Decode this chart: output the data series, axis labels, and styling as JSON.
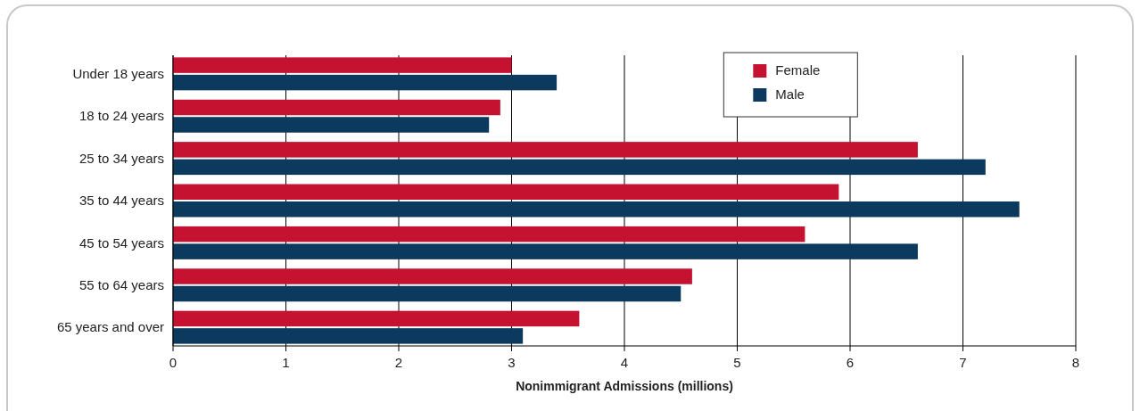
{
  "chart_data": {
    "type": "bar",
    "orientation": "horizontal",
    "xlabel": "Nonimmigrant Admissions (millions)",
    "categories": [
      "Under 18 years",
      "18 to 24 years",
      "25 to 34 years",
      "35 to 44 years",
      "45 to 54 years",
      "55 to 64 years",
      "65 years and over"
    ],
    "series": [
      {
        "name": "Female",
        "color": "#c41230",
        "values": [
          3.0,
          2.9,
          6.6,
          5.9,
          5.6,
          4.6,
          3.6
        ]
      },
      {
        "name": "Male",
        "color": "#0b3a5e",
        "values": [
          3.4,
          2.8,
          7.2,
          7.5,
          6.6,
          4.5,
          3.1
        ]
      }
    ],
    "xlim": [
      0,
      8
    ],
    "xticks": [
      0,
      1,
      2,
      3,
      4,
      5,
      6,
      7,
      8
    ],
    "grid": "x",
    "legend": "top"
  }
}
